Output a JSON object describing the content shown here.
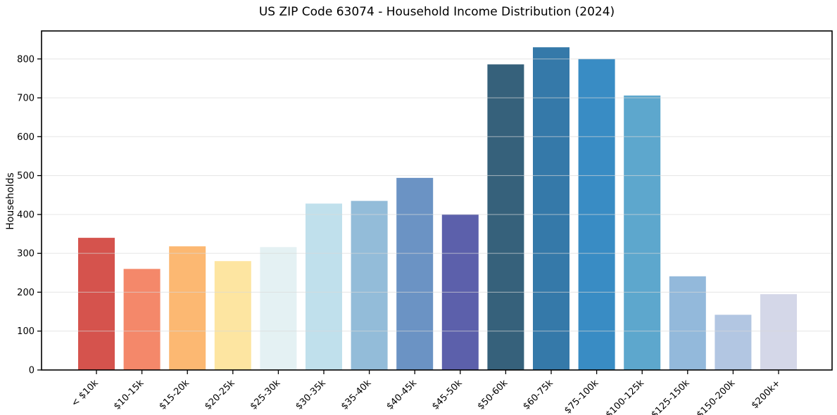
{
  "chart_data": {
    "type": "bar",
    "title": "US ZIP Code 63074 - Household Income Distribution (2024)",
    "xlabel": "",
    "ylabel": "Households",
    "categories": [
      "< $10k",
      "$10-15k",
      "$15-20k",
      "$20-25k",
      "$25-30k",
      "$30-35k",
      "$35-40k",
      "$40-45k",
      "$45-50k",
      "$50-60k",
      "$60-75k",
      "$75-100k",
      "$100-125k",
      "$125-150k",
      "$150-200k",
      "$200k+"
    ],
    "values": [
      340,
      260,
      318,
      280,
      316,
      428,
      435,
      494,
      400,
      786,
      830,
      800,
      706,
      241,
      142,
      195
    ],
    "bar_colors": [
      "#d5534d",
      "#f4886a",
      "#fcb872",
      "#fde5a1",
      "#e4f1f3",
      "#c0e0ec",
      "#93bcd9",
      "#6b93c4",
      "#5c60ab",
      "#36617b",
      "#3579a9",
      "#398cc4",
      "#5da7cd",
      "#93b9db",
      "#b2c6e2",
      "#d4d7e8"
    ],
    "ylim": [
      0,
      872
    ],
    "yticks": [
      0,
      100,
      200,
      300,
      400,
      500,
      600,
      700,
      800
    ],
    "x_tick_rotation_deg": 45,
    "grid": "horizontal-light",
    "legend": "none",
    "background_color": "#ffffff",
    "grid_color": "#d9d9d9",
    "axis_color": "#000000",
    "text_color": "#000000"
  }
}
